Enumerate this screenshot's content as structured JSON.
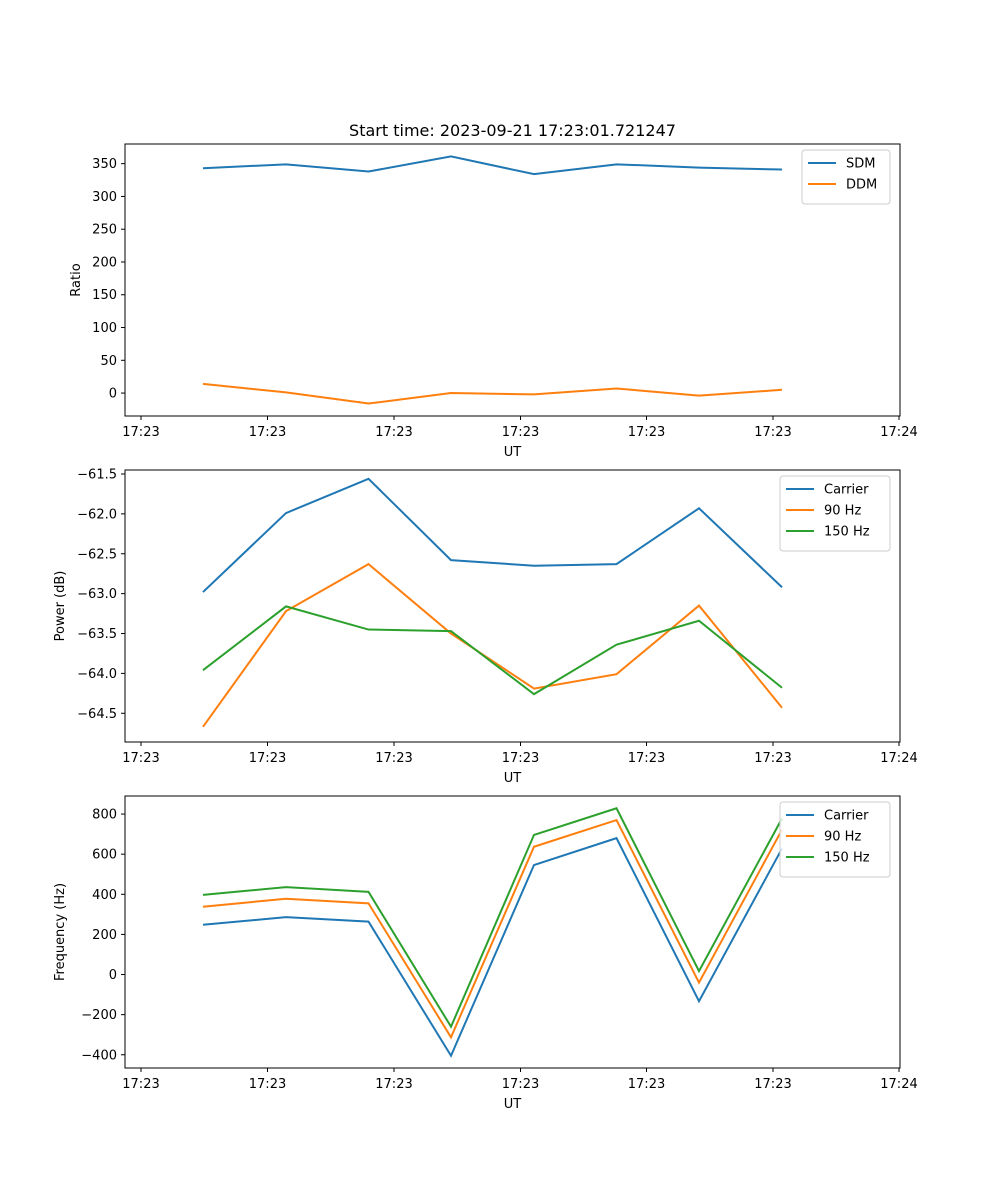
{
  "chart_data": [
    {
      "type": "line",
      "title": "Start time: 2023-09-21 17:23:01.721247",
      "xlabel": "UT",
      "ylabel": "Ratio",
      "xticks": [
        "17:23",
        "17:23",
        "17:23",
        "17:23",
        "17:23",
        "17:23",
        "17:24"
      ],
      "yticks": [
        "0",
        "50",
        "100",
        "150",
        "200",
        "250",
        "300",
        "350"
      ],
      "ylim": [
        -35,
        380
      ],
      "legend_position": "top-right",
      "series": [
        {
          "name": "SDM",
          "color": "#1f77b4",
          "values": [
            343,
            349,
            338,
            361,
            334,
            349,
            344,
            341
          ]
        },
        {
          "name": "DDM",
          "color": "#ff7f0e",
          "values": [
            14,
            1,
            -16,
            0,
            -2,
            7,
            -4,
            5
          ]
        }
      ]
    },
    {
      "type": "line",
      "title": "",
      "xlabel": "UT",
      "ylabel": "Power (dB)",
      "xticks": [
        "17:23",
        "17:23",
        "17:23",
        "17:23",
        "17:23",
        "17:23",
        "17:24"
      ],
      "yticks": [
        "−64.5",
        "−64.0",
        "−63.5",
        "−63.0",
        "−62.5",
        "−62.0",
        "−61.5"
      ],
      "ylim": [
        -64.86,
        -61.45
      ],
      "legend_position": "top-right",
      "series": [
        {
          "name": "Carrier",
          "color": "#1f77b4",
          "values": [
            -62.98,
            -61.99,
            -61.56,
            -62.58,
            -62.65,
            -62.63,
            -61.93,
            -62.92
          ]
        },
        {
          "name": "90 Hz",
          "color": "#ff7f0e",
          "values": [
            -64.67,
            -63.22,
            -62.63,
            -63.5,
            -64.19,
            -64.01,
            -63.15,
            -64.43
          ]
        },
        {
          "name": "150 Hz",
          "color": "#2ca02c",
          "values": [
            -63.96,
            -63.16,
            -63.45,
            -63.47,
            -64.26,
            -63.64,
            -63.34,
            -64.18
          ]
        }
      ]
    },
    {
      "type": "line",
      "title": "",
      "xlabel": "UT",
      "ylabel": "Frequency (Hz)",
      "xticks": [
        "17:23",
        "17:23",
        "17:23",
        "17:23",
        "17:23",
        "17:23",
        "17:24"
      ],
      "yticks": [
        "−400",
        "−200",
        "0",
        "200",
        "400",
        "600",
        "800"
      ],
      "ylim": [
        -466,
        890
      ],
      "legend_position": "top-right",
      "series": [
        {
          "name": "Carrier",
          "color": "#1f77b4",
          "values": [
            248,
            286,
            264,
            -405,
            546,
            680,
            -133,
            628
          ]
        },
        {
          "name": "90 Hz",
          "color": "#ff7f0e",
          "values": [
            338,
            378,
            355,
            -313,
            637,
            770,
            -40,
            722
          ]
        },
        {
          "name": "150 Hz",
          "color": "#2ca02c",
          "values": [
            397,
            436,
            412,
            -260,
            696,
            829,
            17,
            778
          ]
        }
      ]
    }
  ]
}
